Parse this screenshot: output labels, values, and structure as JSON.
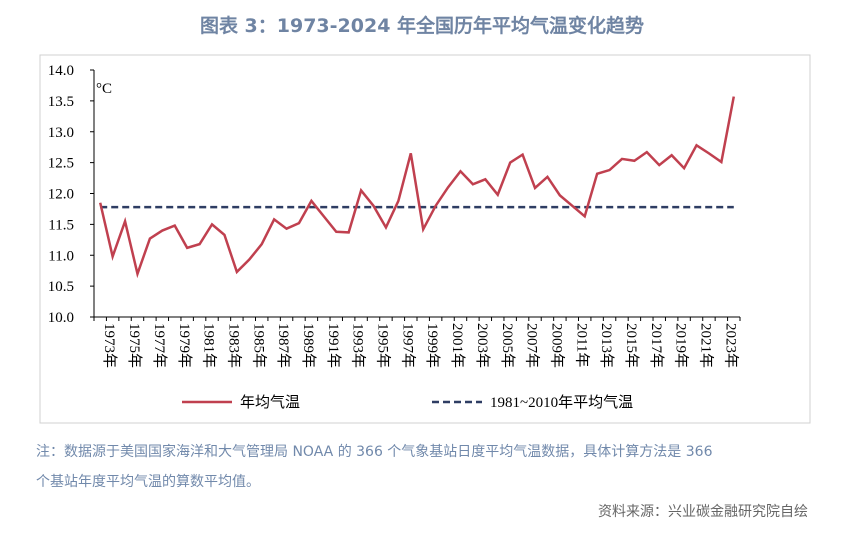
{
  "chart_data": {
    "type": "line",
    "title": "图表 3：1973-2024 年全国历年平均气温变化趋势",
    "unit_label": "°C",
    "categories": [
      "1973年",
      null,
      "1975年",
      null,
      "1977年",
      null,
      "1979年",
      null,
      "1981年",
      null,
      "1983年",
      null,
      "1985年",
      null,
      "1987年",
      null,
      "1989年",
      null,
      "1991年",
      null,
      "1993年",
      null,
      "1995年",
      null,
      "1997年",
      null,
      "1999年",
      null,
      "2001年",
      null,
      "2003年",
      null,
      "2005年",
      null,
      "2007年",
      null,
      "2009年",
      null,
      "2011年",
      null,
      "2013年",
      null,
      "2015年",
      null,
      "2017年",
      null,
      "2019年",
      null,
      "2021年",
      null,
      "2023年",
      null
    ],
    "series": [
      {
        "name": "年均气温",
        "color": "#c0404f",
        "values": [
          11.85,
          10.98,
          11.55,
          10.7,
          11.27,
          11.4,
          11.48,
          11.12,
          11.18,
          11.5,
          11.33,
          10.73,
          10.93,
          11.18,
          11.58,
          11.43,
          11.52,
          11.88,
          11.63,
          11.38,
          11.37,
          12.05,
          11.8,
          11.45,
          11.88,
          12.65,
          11.42,
          11.8,
          12.1,
          12.36,
          12.15,
          12.23,
          11.98,
          12.5,
          12.63,
          12.09,
          12.27,
          11.97,
          11.8,
          11.63,
          12.32,
          12.38,
          12.56,
          12.53,
          12.67,
          12.46,
          12.62,
          12.41,
          12.78,
          12.65,
          12.51,
          13.57
        ]
      }
    ],
    "reference_line": {
      "name": "1981~2010年平均气温",
      "value": 11.78,
      "color": "#2e3d63",
      "dashed": true
    },
    "ylim": [
      10,
      14
    ],
    "yticks": [
      {
        "value": 10,
        "label": "10.0"
      },
      {
        "value": 10.5,
        "label": "10.5"
      },
      {
        "value": 11,
        "label": "11.0"
      },
      {
        "value": 11.5,
        "label": "11.5"
      },
      {
        "value": 12,
        "label": "12.0"
      },
      {
        "value": 12.5,
        "label": "12.5"
      },
      {
        "value": 13,
        "label": "13.0"
      },
      {
        "value": 13.5,
        "label": "13.5"
      },
      {
        "value": 14,
        "label": "14.0"
      }
    ],
    "grid": false,
    "legend": "bottom"
  },
  "note_lines": [
    "注：数据源于美国国家海洋和大气管理局 NOAA 的 366 个气象基站日度平均气温数据，具体计算方法是 366",
    "个基站年度平均气温的算数平均值。"
  ],
  "source": "资料来源：兴业碳金融研究院自绘"
}
